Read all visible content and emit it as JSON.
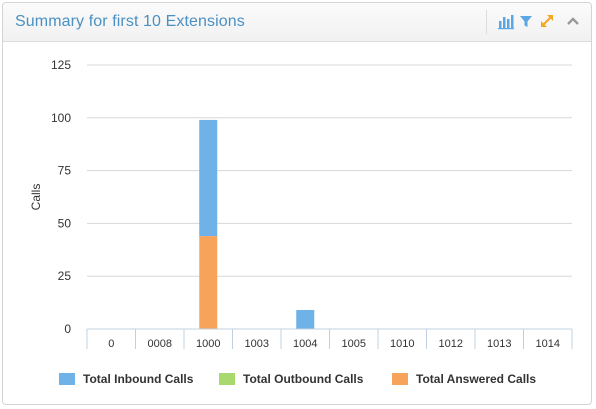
{
  "widget": {
    "title": "Summary for first 10 Extensions",
    "icons": [
      "bar-chart-icon",
      "filter-icon",
      "expand-icon",
      "collapse-icon"
    ],
    "colors": {
      "title": "#4a90c2",
      "icon_blue": "#5aa7e3",
      "icon_orange": "#f5a623",
      "icon_gray": "#999999"
    }
  },
  "chart_data": {
    "type": "bar",
    "stacked": true,
    "ylabel": "Calls",
    "xlabel": "",
    "ylim": [
      0,
      125
    ],
    "yticks": [
      0,
      25,
      50,
      75,
      100,
      125
    ],
    "grid": true,
    "legend_position": "bottom",
    "categories": [
      "0",
      "0008",
      "1000",
      "1003",
      "1004",
      "1005",
      "1010",
      "1012",
      "1013",
      "1014"
    ],
    "series": [
      {
        "name": "Total Answered Calls",
        "color": "#f7a35c",
        "values": [
          0,
          0,
          44,
          0,
          0,
          0,
          0,
          0,
          0,
          0
        ]
      },
      {
        "name": "Total Outbound Calls",
        "color": "#a8d86e",
        "values": [
          0,
          0,
          0,
          0,
          0,
          0,
          0,
          0,
          0,
          0
        ]
      },
      {
        "name": "Total Inbound Calls",
        "color": "#6fb2e8",
        "values": [
          0,
          0,
          55,
          0,
          9,
          0,
          0,
          0,
          0,
          0
        ]
      }
    ],
    "legend_order": [
      "Total Inbound Calls",
      "Total Outbound Calls",
      "Total Answered Calls"
    ]
  }
}
